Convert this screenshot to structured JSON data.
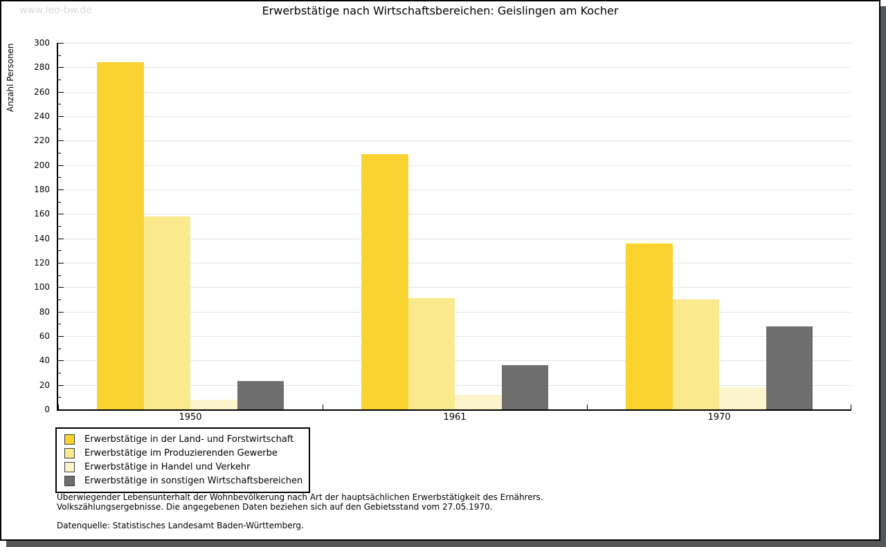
{
  "watermark": "www.leo-bw.de",
  "title": "Erwerbstätige nach Wirtschaftsbereichen: Geislingen am Kocher",
  "chart_data": {
    "type": "bar",
    "title": "Erwerbstätige nach Wirtschaftsbereichen: Geislingen am Kocher",
    "xlabel": "",
    "ylabel": "Anzahl Personen",
    "categories": [
      "1950",
      "1961",
      "1970"
    ],
    "series": [
      {
        "name": "Erwerbstätige in der Land- und Forstwirtschaft",
        "color": "#fbd330",
        "values": [
          284,
          209,
          136
        ]
      },
      {
        "name": "Erwerbstätige im Produzierenden Gewerbe",
        "color": "#fbe98e",
        "values": [
          158,
          91,
          90
        ]
      },
      {
        "name": "Erwerbstätige in Handel und Verkehr",
        "color": "#fcf4cd",
        "values": [
          8,
          12,
          18
        ]
      },
      {
        "name": "Erwerbstätige in sonstigen Wirtschaftsbereichen",
        "color": "#6e6e6e",
        "values": [
          23,
          36,
          68
        ]
      }
    ],
    "ylim": [
      0,
      300
    ],
    "ytick_major": 20,
    "ytick_minor": 10,
    "grid": true,
    "legend_position": "bottom-left"
  },
  "footnotes": {
    "line1": "Überwiegender Lebensunterhalt der Wohnbevölkerung nach Art der hauptsächlichen Erwerbstätigkeit des Ernährers.",
    "line2": "Volkszählungsergebnisse. Die angegebenen Daten beziehen sich auf den Gebietsstand vom 27.05.1970.",
    "source": "Datenquelle: Statistisches Landesamt Baden-Württemberg."
  },
  "shadow_color": "#55565a"
}
